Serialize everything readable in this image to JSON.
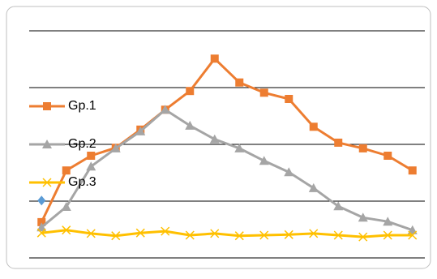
{
  "chart_data": {
    "type": "line",
    "categories": [
      null,
      null,
      null,
      null,
      null,
      null,
      null,
      null,
      null,
      null,
      null,
      null,
      null,
      null,
      null,
      null
    ],
    "series": [
      {
        "name": "Gp.1",
        "color": "#ed7d31",
        "marker": "square",
        "values": [
          0.63,
          1.54,
          1.8,
          1.94,
          2.26,
          2.61,
          2.94,
          3.51,
          3.09,
          2.91,
          2.8,
          2.31,
          2.03,
          1.93,
          1.8,
          1.54
        ]
      },
      {
        "name": "Gp.2",
        "color": "#a5a5a5",
        "marker": "triangle",
        "values": [
          0.54,
          0.9,
          1.61,
          1.93,
          2.23,
          2.61,
          2.33,
          2.09,
          1.93,
          1.71,
          1.51,
          1.23,
          0.91,
          0.71,
          0.64,
          0.49
        ]
      },
      {
        "name": "Gp.3",
        "color": "#ffc000",
        "marker": "x",
        "values": [
          0.44,
          0.49,
          0.43,
          0.39,
          0.44,
          0.47,
          0.4,
          0.43,
          0.39,
          0.4,
          0.41,
          0.43,
          0.4,
          0.37,
          0.4,
          0.4
        ]
      },
      {
        "color": "#5b9bd5",
        "marker": "diamond",
        "values": [
          1.01,
          null,
          null,
          null,
          null,
          null,
          null,
          null,
          null,
          null,
          null,
          null,
          null,
          null,
          null,
          null
        ]
      }
    ],
    "ylim": [
      0,
      4
    ],
    "yticks": [
      0,
      1,
      2,
      3,
      4
    ],
    "grid": true,
    "legend": "left"
  }
}
